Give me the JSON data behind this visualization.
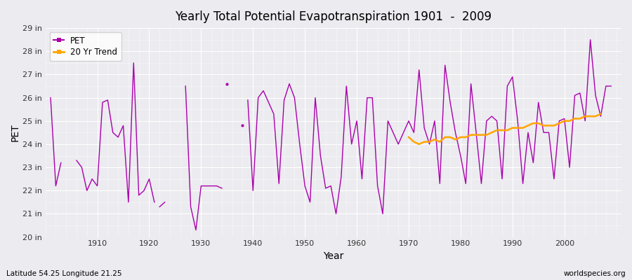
{
  "title": "Yearly Total Potential Evapotranspiration 1901  -  2009",
  "xlabel": "Year",
  "ylabel": "PET",
  "pet_color": "#AA00AA",
  "trend_color": "#FFA500",
  "bg_color": "#EBEBF0",
  "grid_color": "#FFFFFF",
  "ylim": [
    20,
    29
  ],
  "ytick_labels": [
    "20 in",
    "21 in",
    "22 in",
    "23 in",
    "24 in",
    "25 in",
    "26 in",
    "27 in",
    "28 in",
    "29 in"
  ],
  "ytick_vals": [
    20,
    21,
    22,
    23,
    24,
    25,
    26,
    27,
    28,
    29
  ],
  "xticks": [
    1910,
    1920,
    1930,
    1940,
    1950,
    1960,
    1970,
    1980,
    1990,
    2000
  ],
  "footnote_left": "Latitude 54.25 Longitude 21.25",
  "footnote_right": "worldspecies.org",
  "years": [
    1901,
    1902,
    1903,
    1904,
    1905,
    1906,
    1907,
    1908,
    1909,
    1910,
    1911,
    1912,
    1913,
    1914,
    1915,
    1916,
    1917,
    1918,
    1919,
    1920,
    1921,
    1922,
    1923,
    1924,
    1925,
    1926,
    1927,
    1928,
    1929,
    1930,
    1931,
    1932,
    1933,
    1934,
    1935,
    1936,
    1937,
    1938,
    1939,
    1940,
    1941,
    1942,
    1943,
    1944,
    1945,
    1946,
    1947,
    1948,
    1949,
    1950,
    1951,
    1952,
    1953,
    1954,
    1955,
    1956,
    1957,
    1958,
    1959,
    1960,
    1961,
    1962,
    1963,
    1964,
    1965,
    1966,
    1967,
    1968,
    1969,
    1970,
    1971,
    1972,
    1973,
    1974,
    1975,
    1976,
    1977,
    1978,
    1979,
    1980,
    1981,
    1982,
    1983,
    1984,
    1985,
    1986,
    1987,
    1988,
    1989,
    1990,
    1991,
    1992,
    1993,
    1994,
    1995,
    1996,
    1997,
    1998,
    1999,
    2000,
    2001,
    2002,
    2003,
    2004,
    2005,
    2006,
    2007,
    2008,
    2009
  ],
  "pet_values": [
    26.0,
    22.2,
    23.2,
    null,
    null,
    null,
    null,
    null,
    null,
    null,
    null,
    null,
    null,
    null,
    null,
    null,
    null,
    null,
    null,
    null,
    null,
    null,
    null,
    null,
    null,
    null,
    null,
    null,
    null,
    null,
    null,
    null,
    null,
    null,
    null,
    null,
    null,
    null,
    null,
    null,
    null,
    null,
    null,
    null,
    null,
    null,
    null,
    null,
    null,
    null,
    null,
    null,
    null,
    null,
    null,
    null,
    null,
    null,
    null,
    null,
    null,
    null,
    null,
    null,
    null,
    null,
    null,
    null,
    null,
    null,
    null,
    null,
    null,
    null,
    null,
    null,
    null,
    null,
    null,
    null,
    null,
    null,
    null,
    null,
    null,
    null,
    null,
    null,
    null,
    null,
    null,
    null,
    null,
    null,
    null,
    null,
    null,
    null,
    null,
    null,
    null,
    null,
    null,
    null,
    null,
    null,
    null,
    null,
    null
  ],
  "segments": [
    {
      "years": [
        1901,
        1902,
        1903
      ],
      "values": [
        26.0,
        22.2,
        23.2
      ]
    },
    {
      "years": [
        1906,
        1907,
        1908,
        1909,
        1910,
        1911,
        1912,
        1913,
        1914,
        1915,
        1916,
        1917,
        1918,
        1919,
        1920,
        1921
      ],
      "values": [
        23.3,
        23.0,
        22.0,
        22.5,
        22.2,
        25.8,
        25.9,
        24.5,
        24.3,
        24.8,
        21.5,
        27.5,
        21.8,
        22.0,
        22.5,
        21.5
      ]
    },
    {
      "years": [
        1922,
        1923
      ],
      "values": [
        21.3,
        21.5
      ]
    },
    {
      "years": [
        1927,
        1928,
        1929,
        1930,
        1931,
        1932,
        1933,
        1934
      ],
      "values": [
        26.5,
        21.3,
        20.3,
        22.2,
        22.2,
        22.2,
        22.2,
        22.1
      ]
    },
    {
      "years": [
        1935
      ],
      "values": [
        26.6
      ]
    },
    {
      "years": [
        1938
      ],
      "values": [
        24.8
      ]
    },
    {
      "years": [
        1939,
        1940,
        1941,
        1942,
        1943,
        1944,
        1945,
        1946,
        1947,
        1948,
        1949,
        1950,
        1951,
        1952,
        1953,
        1954,
        1955,
        1956,
        1957,
        1958,
        1959,
        1960,
        1961,
        1962,
        1963,
        1964,
        1965,
        1966,
        1967,
        1968,
        1969,
        1970,
        1971,
        1972,
        1973,
        1974,
        1975,
        1976,
        1977,
        1978,
        1979,
        1980,
        1981,
        1982,
        1983,
        1984,
        1985,
        1986,
        1987,
        1988,
        1989,
        1990,
        1991,
        1992,
        1993,
        1994,
        1995,
        1996,
        1997,
        1998,
        1999,
        2000,
        2001,
        2002,
        2003,
        2004,
        2005,
        2006,
        2007,
        2008,
        2009
      ],
      "values": [
        25.9,
        22.0,
        26.0,
        26.3,
        25.8,
        25.3,
        22.3,
        25.9,
        26.6,
        26.0,
        24.0,
        22.2,
        21.5,
        26.0,
        23.5,
        22.1,
        22.2,
        21.0,
        22.6,
        26.5,
        24.0,
        25.0,
        22.5,
        26.0,
        26.0,
        22.2,
        21.0,
        25.0,
        24.5,
        24.0,
        24.5,
        25.0,
        24.5,
        27.2,
        24.7,
        24.0,
        25.0,
        22.3,
        27.4,
        25.8,
        24.5,
        23.5,
        22.3,
        26.6,
        24.5,
        22.3,
        25.0,
        25.2,
        25.0,
        22.5,
        26.5,
        26.9,
        25.0,
        22.3,
        24.5,
        23.2,
        25.8,
        24.5,
        24.5,
        22.5,
        25.0,
        25.1,
        23.0,
        26.1,
        26.2,
        25.0,
        28.5,
        26.1,
        25.2,
        26.5,
        26.5
      ]
    }
  ],
  "trend_years": [
    1970,
    1971,
    1972,
    1973,
    1974,
    1975,
    1976,
    1977,
    1978,
    1979,
    1980,
    1981,
    1982,
    1983,
    1984,
    1985,
    1986,
    1987,
    1988,
    1989,
    1990,
    1991,
    1992,
    1993,
    1994,
    1995,
    1996,
    1997,
    1998,
    1999,
    2000,
    2001,
    2002,
    2003,
    2004,
    2005,
    2006,
    2007
  ],
  "trend_values": [
    24.3,
    24.1,
    24.0,
    24.1,
    24.1,
    24.2,
    24.1,
    24.3,
    24.3,
    24.2,
    24.3,
    24.3,
    24.4,
    24.4,
    24.4,
    24.4,
    24.5,
    24.6,
    24.6,
    24.6,
    24.7,
    24.7,
    24.7,
    24.8,
    24.9,
    24.9,
    24.8,
    24.8,
    24.8,
    24.9,
    25.0,
    25.0,
    25.1,
    25.1,
    25.2,
    25.2,
    25.2,
    25.3
  ]
}
